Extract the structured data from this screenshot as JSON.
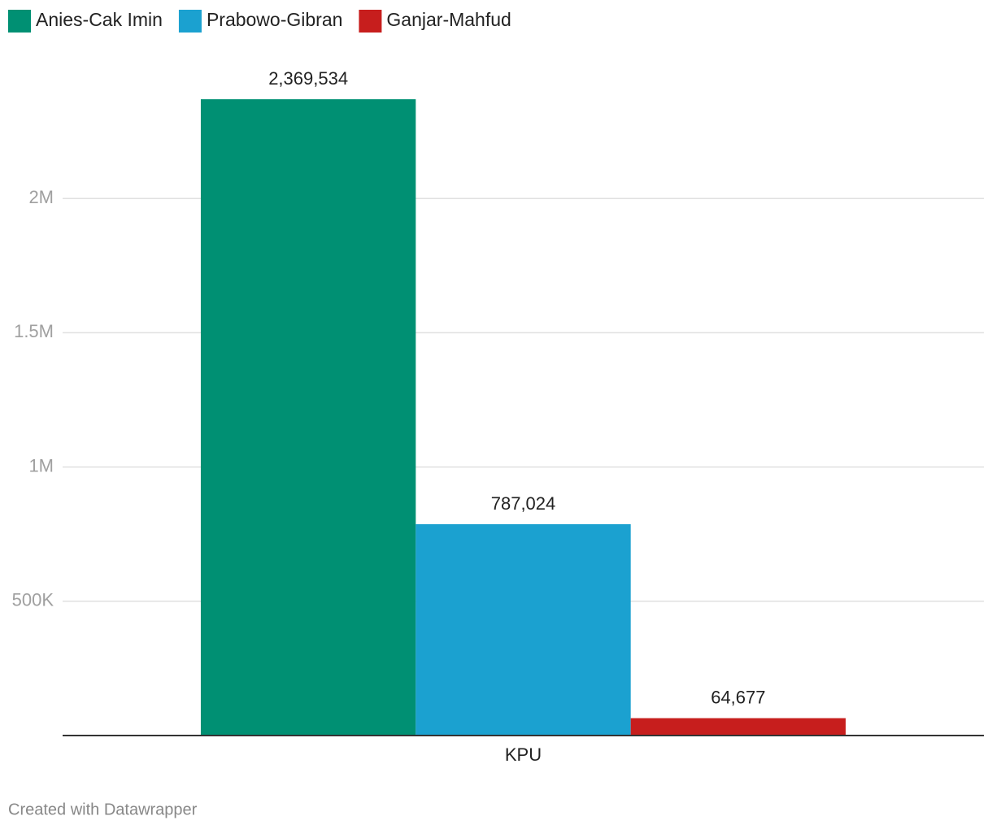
{
  "chart_data": {
    "type": "bar",
    "categories": [
      "KPU"
    ],
    "series": [
      {
        "name": "Anies-Cak Imin",
        "color": "#009073",
        "values": [
          2369534
        ],
        "value_labels": [
          "2,369,534"
        ]
      },
      {
        "name": "Prabowo-Gibran",
        "color": "#1ba1d0",
        "values": [
          787024
        ],
        "value_labels": [
          "787,024"
        ]
      },
      {
        "name": "Ganjar-Mahfud",
        "color": "#c71e1d",
        "values": [
          64677
        ],
        "value_labels": [
          "64,677"
        ]
      }
    ],
    "ylim": [
      0,
      2500000
    ],
    "yticks": [
      {
        "value": 500000,
        "label": "500K"
      },
      {
        "value": 1000000,
        "label": "1M"
      },
      {
        "value": 1500000,
        "label": "1.5M"
      },
      {
        "value": 2000000,
        "label": "2M"
      }
    ],
    "grid": true,
    "legend": "top-left",
    "credit": "Created with Datawrapper"
  }
}
